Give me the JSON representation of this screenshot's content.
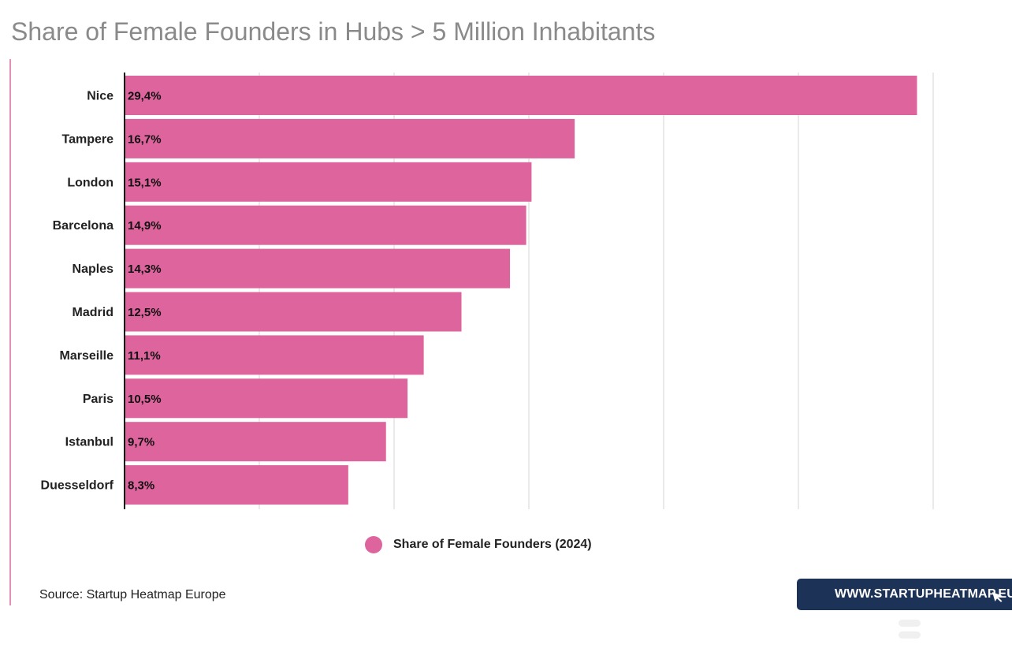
{
  "title": "Share of Female Founders in Hubs > 5 Million Inhabitants",
  "source": "Source: Startup Heatmap Europe",
  "brand": {
    "label": "WWW.STARTUPHEATMAP.EU",
    "color": "#1c3256",
    "icon": "cursor-pointer-icon"
  },
  "menu_icon": "menu-lines-icon",
  "colors": {
    "bar": "#de649d",
    "grid": "#d4d4d4",
    "axis": "#111111",
    "left_rule": "#e58fb8"
  },
  "chart_data": {
    "type": "bar",
    "orientation": "horizontal",
    "title": "Share of Female Founders in Hubs > 5 Million Inhabitants",
    "categories": [
      "Nice",
      "Tampere",
      "London",
      "Barcelona",
      "Naples",
      "Madrid",
      "Marseille",
      "Paris",
      "Istanbul",
      "Duesseldorf"
    ],
    "series": [
      {
        "name": "Share of Female Founders (2024)",
        "values": [
          29.4,
          16.7,
          15.1,
          14.9,
          14.3,
          12.5,
          11.1,
          10.5,
          9.7,
          8.3
        ],
        "labels": [
          "29,4%",
          "16,7%",
          "15,1%",
          "14,9%",
          "14,3%",
          "12,5%",
          "11,1%",
          "10,5%",
          "9,7%",
          "8,3%"
        ]
      }
    ],
    "xlim": [
      0,
      30
    ],
    "grid_step": 5,
    "grid": true,
    "legend": "bottom-center",
    "xlabel": "",
    "ylabel": ""
  }
}
